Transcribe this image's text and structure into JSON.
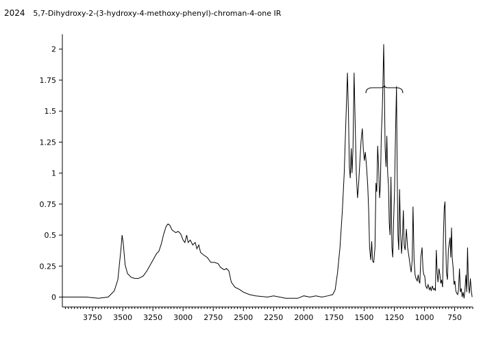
{
  "header": {
    "number": "2024",
    "title": "5,7-Dihydroxy-2-(3-hydroxy-4-methoxy-phenyl)-chroman-4-one  IR"
  },
  "chart_data": {
    "type": "line",
    "title": "5,7-Dihydroxy-2-(3-hydroxy-4-methoxy-phenyl)-chroman-4-one  IR",
    "xlabel": "",
    "ylabel": "",
    "xlim": [
      4000,
      600
    ],
    "ylim": [
      -0.08,
      2.12
    ],
    "x_reversed": true,
    "x_ticks": [
      3750,
      3500,
      3250,
      3000,
      2750,
      2500,
      2250,
      2000,
      1750,
      1500,
      1250,
      1000,
      750
    ],
    "x_tick_labels": [
      "3750",
      "3500",
      "3250",
      "3000",
      "2750",
      "2500",
      "2250",
      "2000",
      "1750",
      "1500",
      "1250",
      "1000",
      "750"
    ],
    "y_ticks": [
      0,
      0.25,
      0.5,
      0.75,
      1,
      1.25,
      1.5,
      1.75,
      2
    ],
    "y_tick_labels": [
      "0",
      "0.25",
      "0.5",
      "0.75",
      "1",
      "1.25",
      "1.5",
      "1.75",
      "2"
    ],
    "grid": false,
    "color": "#000000",
    "series": [
      {
        "points": [
          [
            4000,
            0.0
          ],
          [
            3900,
            0.0
          ],
          [
            3800,
            0.0
          ],
          [
            3700,
            -0.01
          ],
          [
            3620,
            0.0
          ],
          [
            3570,
            0.05
          ],
          [
            3540,
            0.14
          ],
          [
            3515,
            0.38
          ],
          [
            3505,
            0.5
          ],
          [
            3495,
            0.43
          ],
          [
            3480,
            0.26
          ],
          [
            3460,
            0.19
          ],
          [
            3430,
            0.16
          ],
          [
            3400,
            0.15
          ],
          [
            3370,
            0.15
          ],
          [
            3330,
            0.17
          ],
          [
            3300,
            0.21
          ],
          [
            3260,
            0.28
          ],
          [
            3220,
            0.35
          ],
          [
            3200,
            0.37
          ],
          [
            3180,
            0.43
          ],
          [
            3160,
            0.51
          ],
          [
            3140,
            0.57
          ],
          [
            3125,
            0.59
          ],
          [
            3110,
            0.58
          ],
          [
            3090,
            0.54
          ],
          [
            3060,
            0.52
          ],
          [
            3040,
            0.53
          ],
          [
            3020,
            0.51
          ],
          [
            3000,
            0.46
          ],
          [
            2985,
            0.44
          ],
          [
            2970,
            0.5
          ],
          [
            2958,
            0.44
          ],
          [
            2940,
            0.46
          ],
          [
            2920,
            0.42
          ],
          [
            2900,
            0.44
          ],
          [
            2885,
            0.39
          ],
          [
            2870,
            0.42
          ],
          [
            2855,
            0.36
          ],
          [
            2830,
            0.34
          ],
          [
            2800,
            0.32
          ],
          [
            2770,
            0.28
          ],
          [
            2740,
            0.28
          ],
          [
            2710,
            0.27
          ],
          [
            2690,
            0.24
          ],
          [
            2660,
            0.22
          ],
          [
            2640,
            0.23
          ],
          [
            2620,
            0.21
          ],
          [
            2600,
            0.12
          ],
          [
            2570,
            0.08
          ],
          [
            2530,
            0.06
          ],
          [
            2500,
            0.04
          ],
          [
            2450,
            0.02
          ],
          [
            2400,
            0.01
          ],
          [
            2300,
            0.0
          ],
          [
            2250,
            0.01
          ],
          [
            2150,
            -0.01
          ],
          [
            2050,
            -0.01
          ],
          [
            2000,
            0.01
          ],
          [
            1950,
            0.0
          ],
          [
            1900,
            0.01
          ],
          [
            1850,
            0.0
          ],
          [
            1800,
            0.01
          ],
          [
            1760,
            0.02
          ],
          [
            1740,
            0.06
          ],
          [
            1720,
            0.2
          ],
          [
            1700,
            0.4
          ],
          [
            1680,
            0.7
          ],
          [
            1665,
            1.0
          ],
          [
            1655,
            1.3
          ],
          [
            1645,
            1.6
          ],
          [
            1638,
            1.81
          ],
          [
            1630,
            1.5
          ],
          [
            1622,
            1.05
          ],
          [
            1615,
            0.96
          ],
          [
            1607,
            1.2
          ],
          [
            1600,
            1.0
          ],
          [
            1592,
            1.2
          ],
          [
            1583,
            1.81
          ],
          [
            1575,
            1.45
          ],
          [
            1565,
            1.0
          ],
          [
            1555,
            0.8
          ],
          [
            1545,
            0.92
          ],
          [
            1535,
            1.1
          ],
          [
            1525,
            1.26
          ],
          [
            1515,
            1.36
          ],
          [
            1507,
            1.2
          ],
          [
            1498,
            1.1
          ],
          [
            1490,
            1.17
          ],
          [
            1480,
            1.05
          ],
          [
            1470,
            0.9
          ],
          [
            1462,
            0.7
          ],
          [
            1455,
            0.4
          ],
          [
            1445,
            0.3
          ],
          [
            1437,
            0.45
          ],
          [
            1430,
            0.29
          ],
          [
            1420,
            0.28
          ],
          [
            1410,
            0.4
          ],
          [
            1402,
            0.92
          ],
          [
            1395,
            0.85
          ],
          [
            1388,
            1.22
          ],
          [
            1380,
            1.05
          ],
          [
            1372,
            0.8
          ],
          [
            1365,
            0.9
          ],
          [
            1358,
            1.3
          ],
          [
            1350,
            1.5
          ],
          [
            1344,
            1.72
          ],
          [
            1338,
            2.04
          ],
          [
            1332,
            1.7
          ],
          [
            1326,
            1.2
          ],
          [
            1318,
            1.05
          ],
          [
            1312,
            1.3
          ],
          [
            1305,
            1.0
          ],
          [
            1298,
            0.9
          ],
          [
            1292,
            0.6
          ],
          [
            1285,
            0.5
          ],
          [
            1278,
            0.97
          ],
          [
            1270,
            0.4
          ],
          [
            1263,
            0.32
          ],
          [
            1256,
            0.6
          ],
          [
            1248,
            0.85
          ],
          [
            1240,
            1.3
          ],
          [
            1232,
            1.7
          ],
          [
            1226,
            1.0
          ],
          [
            1220,
            0.5
          ],
          [
            1213,
            0.38
          ],
          [
            1206,
            0.87
          ],
          [
            1198,
            0.52
          ],
          [
            1190,
            0.35
          ],
          [
            1182,
            0.5
          ],
          [
            1175,
            0.7
          ],
          [
            1168,
            0.42
          ],
          [
            1160,
            0.38
          ],
          [
            1150,
            0.55
          ],
          [
            1140,
            0.4
          ],
          [
            1128,
            0.32
          ],
          [
            1118,
            0.25
          ],
          [
            1110,
            0.2
          ],
          [
            1102,
            0.3
          ],
          [
            1095,
            0.73
          ],
          [
            1086,
            0.3
          ],
          [
            1078,
            0.18
          ],
          [
            1070,
            0.15
          ],
          [
            1060,
            0.13
          ],
          [
            1052,
            0.18
          ],
          [
            1045,
            0.13
          ],
          [
            1038,
            0.11
          ],
          [
            1030,
            0.32
          ],
          [
            1020,
            0.4
          ],
          [
            1012,
            0.22
          ],
          [
            1005,
            0.18
          ],
          [
            998,
            0.17
          ],
          [
            990,
            0.09
          ],
          [
            980,
            0.07
          ],
          [
            970,
            0.1
          ],
          [
            960,
            0.06
          ],
          [
            952,
            0.08
          ],
          [
            944,
            0.05
          ],
          [
            935,
            0.09
          ],
          [
            926,
            0.06
          ],
          [
            918,
            0.07
          ],
          [
            910,
            0.05
          ],
          [
            902,
            0.38
          ],
          [
            895,
            0.2
          ],
          [
            888,
            0.12
          ],
          [
            880,
            0.23
          ],
          [
            872,
            0.18
          ],
          [
            865,
            0.11
          ],
          [
            858,
            0.14
          ],
          [
            850,
            0.08
          ],
          [
            843,
            0.5
          ],
          [
            836,
            0.72
          ],
          [
            830,
            0.77
          ],
          [
            824,
            0.45
          ],
          [
            818,
            0.2
          ],
          [
            810,
            0.14
          ],
          [
            802,
            0.38
          ],
          [
            795,
            0.43
          ],
          [
            788,
            0.48
          ],
          [
            782,
            0.32
          ],
          [
            776,
            0.56
          ],
          [
            770,
            0.32
          ],
          [
            763,
            0.24
          ],
          [
            755,
            0.1
          ],
          [
            748,
            0.13
          ],
          [
            740,
            0.05
          ],
          [
            732,
            0.03
          ],
          [
            725,
            0.02
          ],
          [
            718,
            0.06
          ],
          [
            710,
            0.23
          ],
          [
            702,
            0.04
          ],
          [
            695,
            0.07
          ],
          [
            688,
            0.0
          ],
          [
            680,
            0.04
          ],
          [
            672,
            -0.01
          ],
          [
            665,
            0.05
          ],
          [
            657,
            0.18
          ],
          [
            650,
            0.04
          ],
          [
            643,
            0.4
          ],
          [
            636,
            0.1
          ],
          [
            628,
            0.03
          ],
          [
            620,
            0.15
          ],
          [
            612,
            0.05
          ],
          [
            605,
            0.0
          ]
        ]
      }
    ]
  }
}
